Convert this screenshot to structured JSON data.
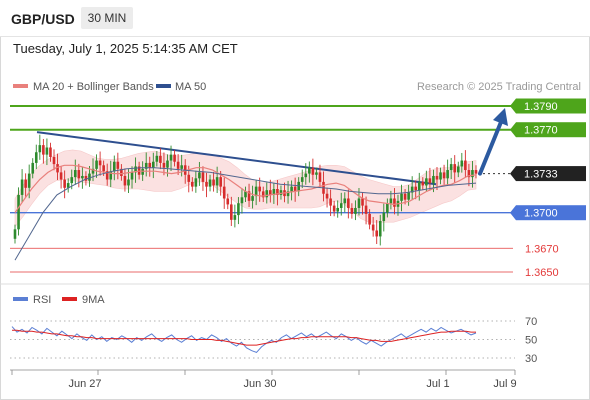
{
  "header": {
    "symbol": "GBP/USD",
    "timeframe": "30 MIN",
    "datetime": "Tuesday, July 1, 2025 5:14:35 AM CET"
  },
  "legend": {
    "ma20": "MA 20 + Bollinger Bands",
    "ma50": "MA 50",
    "credit": "Research © 2025 Trading Central"
  },
  "colors": {
    "resistance": "#4ea51b",
    "support_blue": "#4a74d9",
    "support_red": "#e33a3a",
    "trendline": "#2e4f8f",
    "arrow": "#2c5aa0",
    "bull": "#2d8a2d",
    "bear": "#d62c2c",
    "ma20": "#e9807c",
    "ma50": "#52678f",
    "bands": "#fbe1e1",
    "rsi": "#5b7fd4",
    "rsi_ma": "#dd2222"
  },
  "chart_data": [
    {
      "type": "candlestick",
      "x_ticks": [
        "Jun 27",
        "Jun 30",
        "Jul 1",
        "Jul 9"
      ],
      "levels": [
        {
          "label": "1.3790",
          "value": 1.379,
          "kind": "resistance"
        },
        {
          "label": "1.3770",
          "value": 1.377,
          "kind": "resistance"
        },
        {
          "label": "1.3733",
          "value": 1.3733,
          "kind": "last"
        },
        {
          "label": "1.3700",
          "value": 1.37,
          "kind": "support"
        },
        {
          "label": "1.3670",
          "value": 1.367,
          "kind": "support-red"
        },
        {
          "label": "1.3650",
          "value": 1.365,
          "kind": "support-red"
        }
      ],
      "last_price": 1.3733,
      "projection": {
        "from": 1.3733,
        "to": 1.379
      },
      "trendline": {
        "from": 1.3768,
        "to": 1.3724
      },
      "candles": [
        1.3686,
        1.3715,
        1.3728,
        1.3721,
        1.3733,
        1.3742,
        1.3751,
        1.3757,
        1.3749,
        1.3755,
        1.3747,
        1.3741,
        1.3734,
        1.3728,
        1.3721,
        1.3725,
        1.373,
        1.3736,
        1.3729,
        1.3731,
        1.3727,
        1.3733,
        1.3737,
        1.3744,
        1.374,
        1.3735,
        1.3728,
        1.3735,
        1.3743,
        1.3737,
        1.3731,
        1.3723,
        1.3728,
        1.3734,
        1.3739,
        1.3732,
        1.3737,
        1.3742,
        1.3738,
        1.3743,
        1.3748,
        1.3742,
        1.3738,
        1.3744,
        1.3749,
        1.3743,
        1.3737,
        1.374,
        1.3732,
        1.3726,
        1.3722,
        1.3729,
        1.3734,
        1.3726,
        1.3722,
        1.3728,
        1.3723,
        1.373,
        1.3722,
        1.3712,
        1.3707,
        1.3694,
        1.3698,
        1.3708,
        1.3713,
        1.3718,
        1.371,
        1.3714,
        1.3722,
        1.3718,
        1.3713,
        1.3719,
        1.3715,
        1.372,
        1.3715,
        1.3719,
        1.3714,
        1.3718,
        1.3722,
        1.3718,
        1.3726,
        1.373,
        1.3733,
        1.3738,
        1.3732,
        1.3734,
        1.3726,
        1.3716,
        1.3712,
        1.3706,
        1.3701,
        1.3704,
        1.3708,
        1.3712,
        1.3704,
        1.3699,
        1.3704,
        1.3712,
        1.3706,
        1.3699,
        1.369,
        1.3685,
        1.368,
        1.3693,
        1.37,
        1.3708,
        1.3712,
        1.3705,
        1.371,
        1.3716,
        1.3711,
        1.3717,
        1.3722,
        1.3719,
        1.3726,
        1.3723,
        1.3729,
        1.3725,
        1.3731,
        1.3728,
        1.3734,
        1.3729,
        1.3736,
        1.3741,
        1.3734,
        1.3739,
        1.3744,
        1.3736,
        1.373,
        1.3736,
        1.3733
      ],
      "ma20": [
        1.37,
        1.371,
        1.372,
        1.3728,
        1.3734,
        1.3738,
        1.374,
        1.374,
        1.3739,
        1.3737,
        1.3735,
        1.3734,
        1.3733,
        1.3733,
        1.3734,
        1.3735,
        1.3735,
        1.3735,
        1.3734,
        1.3733,
        1.3734,
        1.3736,
        1.3738,
        1.3738,
        1.3736,
        1.3732,
        1.3728,
        1.3723,
        1.3718,
        1.3715,
        1.3714,
        1.3715,
        1.3716,
        1.3717,
        1.3718,
        1.3719,
        1.372,
        1.3722,
        1.3724,
        1.3725,
        1.3723,
        1.3718,
        1.3713,
        1.371,
        1.3709,
        1.3708,
        1.3707,
        1.3708,
        1.371,
        1.3714,
        1.3718,
        1.3721,
        1.3723,
        1.3724,
        1.3727,
        1.3731,
        1.3732
      ],
      "ma50": [
        1.366,
        1.368,
        1.37,
        1.3715,
        1.3722,
        1.3728,
        1.3732,
        1.3735,
        1.3737,
        1.3738,
        1.3738,
        1.3737,
        1.3736,
        1.3735,
        1.3734,
        1.3732,
        1.373,
        1.3728,
        1.3726,
        1.3724,
        1.3723,
        1.3722,
        1.3721,
        1.372,
        1.3718,
        1.3717,
        1.3716,
        1.3716,
        1.3717,
        1.3719,
        1.3721,
        1.3723,
        1.3724,
        1.3725
      ],
      "bb_half_width": [
        0.0012,
        0.0013,
        0.0013,
        0.0012,
        0.0011,
        0.0011,
        0.0012,
        0.0013,
        0.0013,
        0.0012,
        0.0011,
        0.0011,
        0.0012,
        0.0013,
        0.0014,
        0.0015,
        0.0016,
        0.0017,
        0.0016,
        0.0015,
        0.0014,
        0.0013,
        0.0012,
        0.0012,
        0.0013,
        0.0014,
        0.0015,
        0.0015,
        0.0014,
        0.0012,
        0.0011,
        0.0011,
        0.0012,
        0.0013,
        0.0014,
        0.0015,
        0.0016,
        0.0017,
        0.0016,
        0.0015,
        0.0016,
        0.0017,
        0.0018,
        0.0018,
        0.0017,
        0.0016,
        0.0015,
        0.0014,
        0.0014,
        0.0015,
        0.0016,
        0.0016,
        0.0015,
        0.0014,
        0.0013,
        0.0012,
        0.0012
      ]
    },
    {
      "type": "line",
      "title": "RSI",
      "legend": [
        "RSI",
        "9MA"
      ],
      "y_ticks": [
        70,
        50,
        30
      ],
      "ylim": [
        25,
        75
      ],
      "rsi": [
        64,
        58,
        61,
        57,
        63,
        60,
        56,
        62,
        58,
        54,
        59,
        55,
        51,
        56,
        52,
        49,
        55,
        50,
        53,
        48,
        52,
        50,
        54,
        51,
        47,
        52,
        49,
        53,
        56,
        51,
        48,
        52,
        55,
        50,
        47,
        51,
        54,
        49,
        52,
        50,
        55,
        52,
        48,
        51,
        46,
        43,
        47,
        41,
        38,
        36,
        42,
        46,
        49,
        47,
        52,
        55,
        51,
        54,
        57,
        53,
        56,
        52,
        55,
        58,
        54,
        51,
        56,
        53,
        49,
        52,
        48,
        45,
        49,
        46,
        43,
        47,
        50,
        53,
        56,
        52,
        55,
        58,
        61,
        58,
        62,
        59,
        63,
        60,
        57,
        59,
        61,
        58,
        55,
        57
      ],
      "rsi_ma": [
        60,
        60,
        59,
        59,
        59,
        58,
        58,
        57,
        56,
        56,
        55,
        54,
        54,
        53,
        53,
        52,
        52,
        51,
        51,
        51,
        51,
        51,
        51,
        51,
        51,
        51,
        51,
        51,
        51,
        51,
        51,
        51,
        51,
        51,
        51,
        51,
        50,
        50,
        50,
        50,
        50,
        49,
        49,
        48,
        47,
        46,
        45,
        44,
        44,
        44,
        45,
        46,
        47,
        48,
        49,
        50,
        51,
        51,
        52,
        52,
        53,
        53,
        53,
        53,
        53,
        53,
        53,
        53,
        52,
        52,
        51,
        50,
        49,
        49,
        48,
        48,
        48,
        49,
        50,
        51,
        52,
        53,
        54,
        55,
        56,
        57,
        58,
        58,
        59,
        59,
        59,
        59,
        58,
        58
      ]
    }
  ]
}
